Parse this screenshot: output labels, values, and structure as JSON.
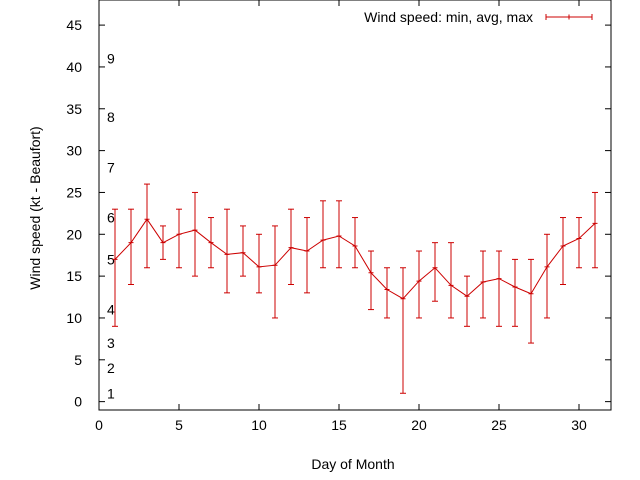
{
  "chart_data": {
    "type": "line",
    "xlabel": "Day of Month",
    "ylabel": "Wind speed (kt - Beaufort)",
    "xlim": [
      0,
      32
    ],
    "ylim": [
      -1,
      48
    ],
    "xticks": [
      0,
      5,
      10,
      15,
      20,
      25,
      30
    ],
    "yticks": [
      0,
      5,
      10,
      15,
      20,
      25,
      30,
      35,
      40,
      45
    ],
    "grid": false,
    "legend": "top-right",
    "series_color": "#cc0000",
    "beaufort_labels": [
      {
        "label": "1",
        "y": 1
      },
      {
        "label": "2",
        "y": 4
      },
      {
        "label": "3",
        "y": 7
      },
      {
        "label": "4",
        "y": 11
      },
      {
        "label": "5",
        "y": 17
      },
      {
        "label": "6",
        "y": 22
      },
      {
        "label": "7",
        "y": 28
      },
      {
        "label": "8",
        "y": 34
      },
      {
        "label": "9",
        "y": 41
      }
    ],
    "series": [
      {
        "name": "Wind speed: min, avg, max",
        "x": [
          1,
          2,
          3,
          4,
          5,
          6,
          7,
          8,
          9,
          10,
          11,
          12,
          13,
          14,
          15,
          16,
          17,
          18,
          19,
          20,
          21,
          22,
          23,
          24,
          25,
          26,
          27,
          28,
          29,
          30,
          31
        ],
        "avg": [
          17,
          19,
          21.8,
          19,
          20,
          20.5,
          19,
          17.6,
          17.8,
          16.1,
          16.3,
          18.4,
          18,
          19.3,
          19.8,
          18.6,
          15.4,
          13.4,
          12.3,
          14.4,
          16,
          13.9,
          12.6,
          14.3,
          14.7,
          13.7,
          12.9,
          16.1,
          18.6,
          19.5,
          21.3
        ],
        "min": [
          9,
          14,
          16,
          17,
          16,
          15,
          16,
          13,
          15,
          13,
          10,
          14,
          13,
          16,
          16,
          16,
          11,
          10,
          1,
          10,
          12,
          10,
          9,
          10,
          9,
          9,
          7,
          10,
          14,
          16,
          16
        ],
        "max": [
          23,
          23,
          26,
          21,
          23,
          25,
          22,
          23,
          21,
          20,
          21,
          23,
          22,
          24,
          24,
          22,
          18,
          16,
          16,
          18,
          19,
          19,
          15,
          18,
          18,
          17,
          17,
          20,
          22,
          22,
          25
        ]
      }
    ]
  }
}
